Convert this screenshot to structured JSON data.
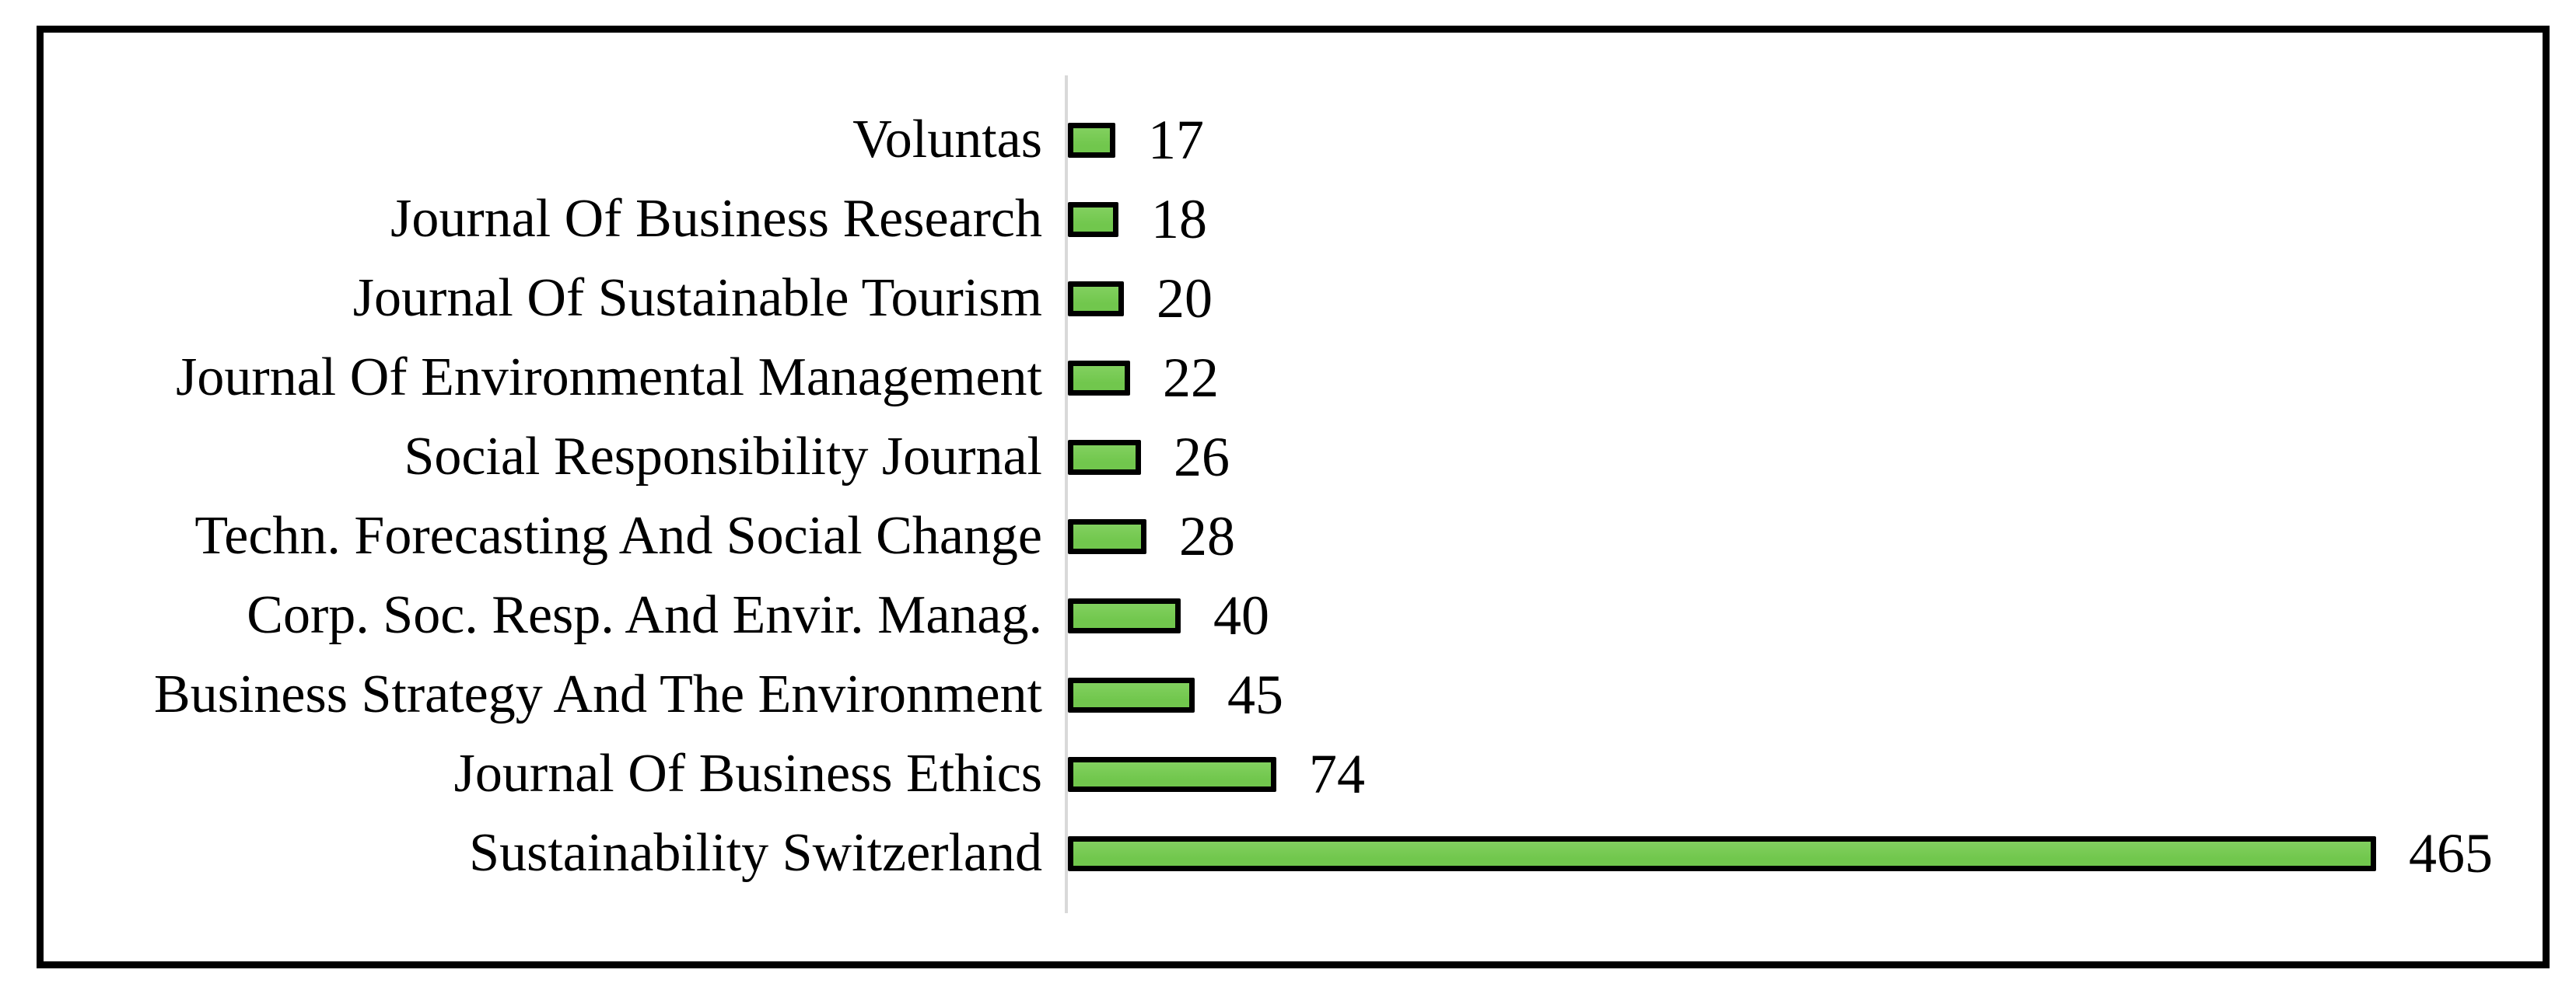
{
  "chart_data": {
    "type": "bar",
    "orientation": "horizontal",
    "title": "",
    "xlabel": "",
    "ylabel": "",
    "grid": false,
    "legend": false,
    "data_labels_shown": true,
    "xlim": [
      0,
      520
    ],
    "categories": [
      "Voluntas",
      "Journal Of Business Research",
      "Journal Of Sustainable Tourism",
      "Journal Of Environmental Management",
      "Social Responsibility Journal",
      "Techn. Forecasting And Social Change",
      "Corp. Soc. Resp. And Envir. Manag.",
      "Business Strategy And The Environment",
      "Journal Of Business Ethics",
      "Sustainability Switzerland"
    ],
    "values": [
      17,
      18,
      20,
      22,
      26,
      28,
      40,
      45,
      74,
      465
    ],
    "colors": {
      "bar_fill": "#71C74D",
      "bar_fill_light": "#82D05F",
      "bar_border": "#000000",
      "axis_line": "#D9D9D9",
      "frame_border": "#000000",
      "background": "#FFFFFF",
      "text": "#000000"
    }
  }
}
